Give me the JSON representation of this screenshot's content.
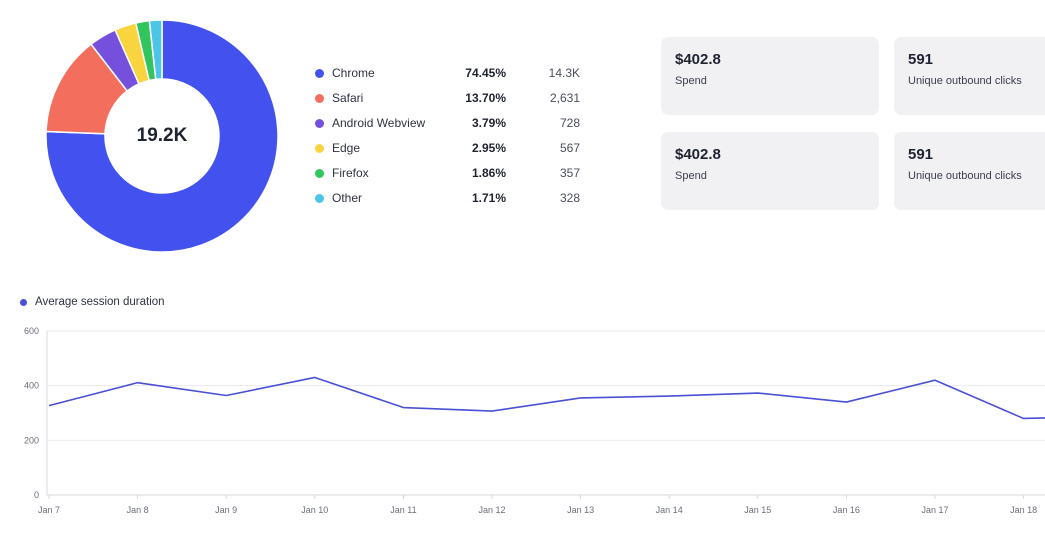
{
  "chart_data": [
    {
      "type": "pie",
      "center_label": "19.2K",
      "slices": [
        {
          "name": "Chrome",
          "percent_label": "74.45%",
          "percent": 74.45,
          "count": "14.3K",
          "color": "#4352ee"
        },
        {
          "name": "Safari",
          "percent_label": "13.70%",
          "percent": 13.7,
          "count": "2,631",
          "color": "#f46e5e"
        },
        {
          "name": "Android Webview",
          "percent_label": "3.79%",
          "percent": 3.79,
          "count": "728",
          "color": "#7450dc"
        },
        {
          "name": "Edge",
          "percent_label": "2.95%",
          "percent": 2.95,
          "count": "567",
          "color": "#f8d43e"
        },
        {
          "name": "Firefox",
          "percent_label": "1.86%",
          "percent": 1.86,
          "count": "357",
          "color": "#32c55e"
        },
        {
          "name": "Other",
          "percent_label": "1.71%",
          "percent": 1.71,
          "count": "328",
          "color": "#4cc6e6"
        }
      ]
    },
    {
      "type": "line",
      "legend": "Average session duration",
      "series_color": "#4a4fd4",
      "categories": [
        "Jan 7",
        "Jan 8",
        "Jan 9",
        "Jan 10",
        "Jan 11",
        "Jan 12",
        "Jan 13",
        "Jan 14",
        "Jan 15",
        "Jan 16",
        "Jan 17",
        "Jan 18"
      ],
      "values": [
        327,
        411,
        364,
        430,
        320,
        307,
        355,
        362,
        373,
        340,
        420,
        280
      ],
      "trailing_value": 282,
      "ylim": [
        0,
        600
      ],
      "yticks": [
        0,
        200,
        400,
        600
      ],
      "grid": true
    }
  ],
  "stats": [
    {
      "value": "$402.8",
      "label": "Spend"
    },
    {
      "value": "591",
      "label": "Unique outbound clicks"
    },
    {
      "value": "$402.8",
      "label": "Spend"
    },
    {
      "value": "591",
      "label": "Unique outbound clicks"
    }
  ]
}
